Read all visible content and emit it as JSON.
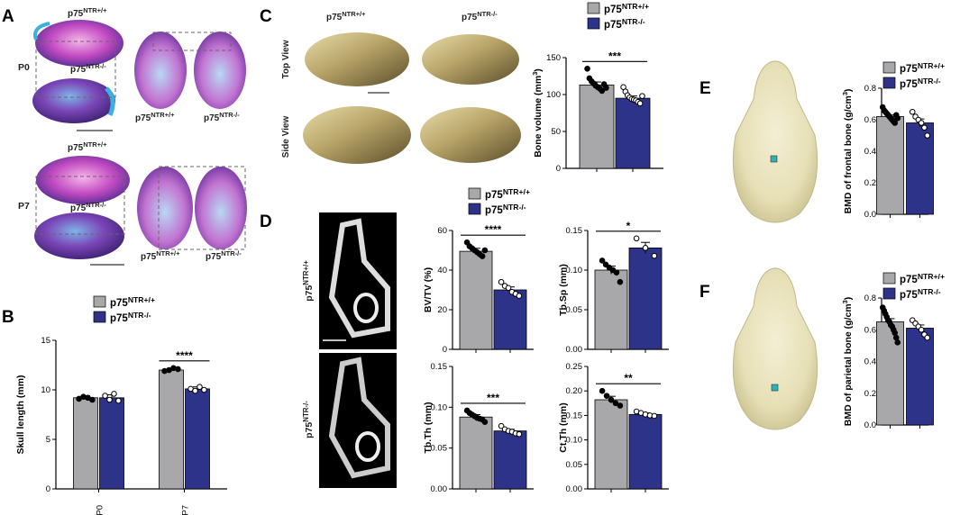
{
  "colors": {
    "wt": "#a8a8ab",
    "ko": "#2c3388",
    "dot": "#000000"
  },
  "panels": [
    "A",
    "B",
    "C",
    "D",
    "E",
    "F"
  ],
  "panelA": {
    "top_label": "p75NTR+/+",
    "mid_label": "p75NTR-/-",
    "row_labels": [
      "P0",
      "P7"
    ],
    "dorsal_labels": [
      "p75NTR+/+",
      "p75NTR-/-"
    ],
    "p7_top_label": "p75NTR+/+",
    "p7_mid_label": "p75NTR-/-",
    "p7_dorsal_labels": [
      "p75NTR+/+",
      "p75NTR-/-"
    ]
  },
  "panelC": {
    "col_labels": [
      "p75NTR+/+",
      "p75NTR-/-"
    ],
    "row_labels": [
      "Top View",
      "Side View"
    ]
  },
  "panelD": {
    "row_labels": [
      "p75NTR+/+",
      "p75NTR-/-"
    ]
  },
  "chart_data": [
    {
      "id": "B",
      "type": "bar",
      "categories": [
        "P0",
        "P7"
      ],
      "series": [
        {
          "name": "p75NTR+/+",
          "values": [
            9.2,
            12.0
          ],
          "errors": [
            0.2,
            0.15
          ],
          "points": [
            [
              9.1,
              9.3,
              9.2,
              9.0
            ],
            [
              11.9,
              12.0,
              12.2,
              12.1
            ]
          ]
        },
        {
          "name": "p75NTR-/-",
          "values": [
            9.2,
            10.1
          ],
          "errors": [
            0.3,
            0.2
          ],
          "points": [
            [
              9.4,
              9.0,
              9.6,
              8.9
            ],
            [
              10.1,
              9.9,
              10.3,
              10.0
            ]
          ]
        }
      ],
      "ylabel": "Skull length (mm)",
      "ylim": [
        0,
        15
      ],
      "yticks": [
        0,
        5,
        10,
        15
      ],
      "significance": [
        {
          "category": "P7",
          "label": "****"
        }
      ]
    },
    {
      "id": "C",
      "type": "bar",
      "categories": [
        ""
      ],
      "series": [
        {
          "name": "p75NTR+/+",
          "values": [
            113
          ],
          "errors": [
            4
          ],
          "points": [
            [
              135,
              122,
              118,
              115,
              112,
              110,
              108,
              105,
              114,
              109
            ]
          ]
        },
        {
          "name": "p75NTR-/-",
          "values": [
            95
          ],
          "errors": [
            3
          ],
          "points": [
            [
              110,
              104,
              99,
              96,
              94,
              93,
              92,
              90,
              88,
              98
            ]
          ]
        }
      ],
      "ylabel": "Bone volume (mm3)",
      "ylim": [
        0,
        150
      ],
      "yticks": [
        0,
        50,
        100,
        150
      ],
      "significance": [
        {
          "label": "***"
        }
      ]
    },
    {
      "id": "D1",
      "type": "bar",
      "series": [
        {
          "name": "p75NTR+/+",
          "values": [
            49.5
          ],
          "errors": [
            1.5
          ],
          "points": [
            [
              54,
              52,
              51,
              50,
              49,
              48,
              47,
              50
            ]
          ]
        },
        {
          "name": "p75NTR-/-",
          "values": [
            30
          ],
          "errors": [
            1.5
          ],
          "points": [
            [
              34,
              32,
              31,
              29,
              28,
              27
            ]
          ]
        }
      ],
      "ylabel": "BV/TV (%)",
      "ylim": [
        0,
        60
      ],
      "yticks": [
        0,
        20,
        40,
        60
      ],
      "significance": [
        {
          "label": "****"
        }
      ]
    },
    {
      "id": "D2",
      "type": "bar",
      "series": [
        {
          "name": "p75NTR+/+",
          "values": [
            0.1
          ],
          "errors": [
            0.005
          ],
          "points": [
            [
              0.112,
              0.107,
              0.103,
              0.1,
              0.097,
              0.085
            ]
          ]
        },
        {
          "name": "p75NTR-/-",
          "values": [
            0.128
          ],
          "errors": [
            0.007
          ],
          "points": [
            [
              0.14,
              0.128,
              0.118
            ]
          ]
        }
      ],
      "ylabel": "Tb.Sp (mm)",
      "ylim": [
        0,
        0.15
      ],
      "yticks": [
        0.0,
        0.05,
        0.1,
        0.15
      ],
      "ytick_labels": [
        "0.00",
        "0.05",
        "0.10",
        "0.15"
      ],
      "significance": [
        {
          "label": "*"
        }
      ]
    },
    {
      "id": "D3",
      "type": "bar",
      "series": [
        {
          "name": "p75NTR+/+",
          "values": [
            0.088
          ],
          "errors": [
            0.003
          ],
          "points": [
            [
              0.096,
              0.093,
              0.091,
              0.089,
              0.087,
              0.086,
              0.085,
              0.082
            ]
          ]
        },
        {
          "name": "p75NTR-/-",
          "values": [
            0.071
          ],
          "errors": [
            0.002
          ],
          "points": [
            [
              0.077,
              0.073,
              0.071,
              0.07,
              0.068,
              0.067
            ]
          ]
        }
      ],
      "ylabel": "Tb.Th (mm)",
      "ylim": [
        0,
        0.15
      ],
      "yticks": [
        0.0,
        0.05,
        0.1,
        0.15
      ],
      "ytick_labels": [
        "0.00",
        "0.05",
        "0.10",
        "0.15"
      ],
      "significance": [
        {
          "label": "***"
        }
      ]
    },
    {
      "id": "D4",
      "type": "bar",
      "series": [
        {
          "name": "p75NTR+/+",
          "values": [
            0.182
          ],
          "errors": [
            0.007
          ],
          "points": [
            [
              0.2,
              0.19,
              0.182,
              0.175,
              0.17
            ]
          ]
        },
        {
          "name": "p75NTR-/-",
          "values": [
            0.152
          ],
          "errors": [
            0.003
          ],
          "points": [
            [
              0.158,
              0.155,
              0.152,
              0.15,
              0.149
            ]
          ]
        }
      ],
      "ylabel": "Ct.Th (mm)",
      "ylim": [
        0,
        0.25
      ],
      "yticks": [
        0.0,
        0.05,
        0.1,
        0.15,
        0.2,
        0.25
      ],
      "ytick_labels": [
        "0.00",
        "0.05",
        "0.10",
        "0.15",
        "0.20",
        "0.25"
      ],
      "significance": [
        {
          "label": "**"
        }
      ]
    },
    {
      "id": "E",
      "type": "bar",
      "series": [
        {
          "name": "p75NTR+/+",
          "values": [
            0.62
          ],
          "errors": [
            0.01
          ],
          "points": [
            [
              0.68,
              0.66,
              0.65,
              0.64,
              0.63,
              0.62,
              0.61,
              0.6,
              0.59,
              0.58,
              0.63,
              0.61
            ]
          ]
        },
        {
          "name": "p75NTR-/-",
          "values": [
            0.58
          ],
          "errors": [
            0.025
          ],
          "points": [
            [
              0.65,
              0.62,
              0.6,
              0.58,
              0.55,
              0.5
            ]
          ]
        }
      ],
      "ylabel": "BMD of frontal bone (g/cm3)",
      "ylim": [
        0,
        0.8
      ],
      "yticks": [
        0.0,
        0.2,
        0.4,
        0.6,
        0.8
      ]
    },
    {
      "id": "F",
      "type": "bar",
      "series": [
        {
          "name": "p75NTR+/+",
          "values": [
            0.65
          ],
          "errors": [
            0.02
          ],
          "points": [
            [
              0.74,
              0.72,
              0.7,
              0.68,
              0.66,
              0.65,
              0.63,
              0.62,
              0.6,
              0.58,
              0.55,
              0.52
            ]
          ]
        },
        {
          "name": "p75NTR-/-",
          "values": [
            0.61
          ],
          "errors": [
            0.02
          ],
          "points": [
            [
              0.66,
              0.64,
              0.62,
              0.6,
              0.57,
              0.55
            ]
          ]
        }
      ],
      "ylabel": "BMD of parietal bone (g/cm3)",
      "ylim": [
        0,
        0.8
      ],
      "yticks": [
        0.0,
        0.2,
        0.4,
        0.6,
        0.8
      ]
    }
  ]
}
